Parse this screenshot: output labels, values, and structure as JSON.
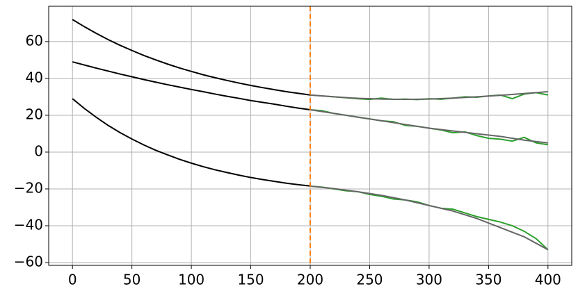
{
  "chart_data": {
    "type": "line",
    "xlim": [
      -20,
      420
    ],
    "ylim": [
      -61.5,
      79.2
    ],
    "xticks": [
      0,
      50,
      100,
      150,
      200,
      250,
      300,
      350,
      400
    ],
    "yticks": [
      {
        "value": -60,
        "label": "−60"
      },
      {
        "value": -40,
        "label": "−40"
      },
      {
        "value": -20,
        "label": "−20"
      },
      0,
      20,
      40,
      60
    ],
    "grid": true,
    "vline": {
      "x": 200,
      "color": "#ff7f0e"
    },
    "series": [
      {
        "color": "#000000",
        "x": [
          0,
          10,
          20,
          30,
          40,
          50,
          60,
          70,
          80,
          90,
          100,
          110,
          120,
          130,
          140,
          150,
          160,
          170,
          180,
          190,
          200
        ],
        "values": [
          72.0,
          68.1,
          64.5,
          61.1,
          58.0,
          55.2,
          52.5,
          50.1,
          47.8,
          45.7,
          43.8,
          42.0,
          40.4,
          38.9,
          37.5,
          36.2,
          35.0,
          33.9,
          32.8,
          31.9,
          31.0
        ]
      },
      {
        "color": "#000000",
        "x": [
          0,
          10,
          20,
          30,
          40,
          50,
          60,
          70,
          80,
          90,
          100,
          110,
          120,
          130,
          140,
          150,
          160,
          170,
          180,
          190,
          200
        ],
        "values": [
          49.0,
          47.3,
          45.6,
          44.0,
          42.4,
          40.9,
          39.4,
          38.0,
          36.6,
          35.3,
          34.0,
          32.8,
          31.5,
          30.3,
          29.2,
          28.0,
          27.0,
          26.0,
          24.9,
          23.9,
          23.0
        ]
      },
      {
        "color": "#000000",
        "x": [
          0,
          10,
          20,
          30,
          40,
          50,
          60,
          70,
          80,
          90,
          100,
          110,
          120,
          130,
          140,
          150,
          160,
          170,
          180,
          190,
          200
        ],
        "values": [
          29.0,
          23.7,
          18.9,
          14.5,
          10.6,
          7.1,
          3.9,
          1.0,
          -1.5,
          -3.9,
          -6.0,
          -7.9,
          -9.6,
          -11.1,
          -12.5,
          -13.8,
          -14.9,
          -15.9,
          -16.9,
          -17.7,
          -18.4
        ]
      },
      {
        "color": "#2ca02c",
        "x": [
          200,
          210,
          220,
          230,
          240,
          250,
          260,
          270,
          280,
          290,
          300,
          310,
          320,
          330,
          340,
          350,
          360,
          370,
          380,
          390,
          400
        ],
        "values": [
          31,
          30.5,
          30,
          29.5,
          29,
          28.6,
          29.3,
          28.6,
          28.8,
          28.5,
          29,
          28.7,
          29.3,
          30,
          29.8,
          30.5,
          31,
          29,
          31.5,
          32.3,
          31
        ]
      },
      {
        "color": "#2ca02c",
        "x": [
          200,
          210,
          220,
          230,
          240,
          250,
          260,
          270,
          280,
          290,
          300,
          310,
          320,
          330,
          340,
          350,
          360,
          370,
          380,
          390,
          400
        ],
        "values": [
          23,
          22.5,
          21,
          20,
          19,
          18,
          17,
          16.5,
          14.5,
          14,
          13,
          12,
          10.5,
          11,
          9,
          7.5,
          7,
          6,
          8,
          5,
          4
        ]
      },
      {
        "color": "#2ca02c",
        "x": [
          200,
          210,
          220,
          230,
          240,
          250,
          260,
          270,
          280,
          290,
          300,
          310,
          320,
          330,
          340,
          350,
          360,
          370,
          380,
          390,
          400
        ],
        "values": [
          -18.5,
          -19,
          -20,
          -21,
          -21.5,
          -23,
          -24,
          -25.5,
          -26,
          -27,
          -29,
          -30.5,
          -31,
          -33,
          -35,
          -36.5,
          -38,
          -40,
          -43,
          -47,
          -53
        ]
      },
      {
        "color": "#666666",
        "x": [
          200,
          220,
          240,
          260,
          280,
          300,
          320,
          340,
          360,
          380,
          400
        ],
        "values": [
          31,
          30,
          29.2,
          28.8,
          28.6,
          28.8,
          29.3,
          30,
          30.8,
          31.8,
          32.8
        ]
      },
      {
        "color": "#666666",
        "x": [
          200,
          220,
          240,
          260,
          280,
          300,
          320,
          340,
          360,
          380,
          400
        ],
        "values": [
          23,
          21,
          19,
          17,
          15,
          13,
          11.5,
          10,
          8.5,
          6.5,
          5
        ]
      },
      {
        "color": "#666666",
        "x": [
          200,
          220,
          240,
          260,
          280,
          300,
          320,
          340,
          360,
          380,
          400
        ],
        "values": [
          -18.5,
          -19.8,
          -21.5,
          -23.5,
          -26,
          -29,
          -32,
          -36,
          -41,
          -46,
          -53
        ]
      }
    ]
  }
}
